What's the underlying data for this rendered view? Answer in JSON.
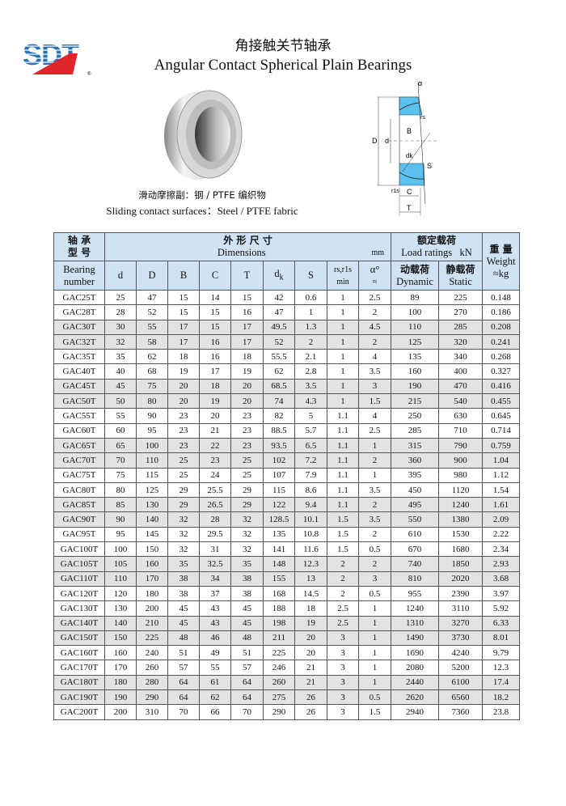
{
  "brand": {
    "logo_text": "SDT",
    "registered": "®",
    "colors": {
      "blue": "#2a72b8",
      "red": "#e0262b"
    }
  },
  "title": {
    "cn": "角接触关节轴承",
    "en": "Angular Contact Spherical Plain Bearings"
  },
  "caption": {
    "cn": "滑动摩擦副：钢 / PTFE 编织物",
    "en": "Sliding contact surfaces：Steel / PTFE fabric"
  },
  "diagram": {
    "labels": {
      "alpha": "α",
      "rs": "rs",
      "r1s": "r1s",
      "B": "B",
      "D": "D",
      "d": "d",
      "dk": "dk",
      "S": "S",
      "C": "C",
      "T": "T"
    },
    "fill_color": "#5bc2ef"
  },
  "table": {
    "header": {
      "bearing_cn1": "轴 承",
      "bearing_cn2": "型 号",
      "bearing_en1": "Bearing",
      "bearing_en2": "number",
      "dims_cn": "外 形 尺 寸",
      "dims_en": "Dimensions",
      "dims_unit": "mm",
      "load_cn": "额定载荷",
      "load_en": "Load ratings",
      "load_unit": "kN",
      "weight_cn": "重 量",
      "weight_en": "Weight",
      "weight_unit": "≈kg",
      "cols": {
        "d": "d",
        "D": "D",
        "B": "B",
        "C": "C",
        "T": "T",
        "dk": "d",
        "dk_sub": "k",
        "S": "S",
        "r": "rs,r1s",
        "r_min": "min",
        "alpha": "α°",
        "alpha_approx": "≈",
        "dyn_cn": "动载荷",
        "dyn_en": "Dynamic",
        "stat_cn": "静载荷",
        "stat_en": "Static"
      }
    },
    "header_color": "#cfe3f4",
    "rows": [
      [
        "GAC25T",
        "25",
        "47",
        "15",
        "14",
        "15",
        "42",
        "0.6",
        "1",
        "2.5",
        "89",
        "225",
        "0.148"
      ],
      [
        "GAC28T",
        "28",
        "52",
        "15",
        "15",
        "16",
        "47",
        "1",
        "1",
        "2",
        "100",
        "270",
        "0.186"
      ],
      [
        "GAC30T",
        "30",
        "55",
        "17",
        "15",
        "17",
        "49.5",
        "1.3",
        "1",
        "4.5",
        "110",
        "285",
        "0.208"
      ],
      [
        "GAC32T",
        "32",
        "58",
        "17",
        "16",
        "17",
        "52",
        "2",
        "1",
        "2",
        "125",
        "320",
        "0.241"
      ],
      [
        "GAC35T",
        "35",
        "62",
        "18",
        "16",
        "18",
        "55.5",
        "2.1",
        "1",
        "4",
        "135",
        "340",
        "0.268"
      ],
      [
        "GAC40T",
        "40",
        "68",
        "19",
        "17",
        "19",
        "62",
        "2.8",
        "1",
        "3.5",
        "160",
        "400",
        "0.327"
      ],
      [
        "GAC45T",
        "45",
        "75",
        "20",
        "18",
        "20",
        "68.5",
        "3.5",
        "1",
        "3",
        "190",
        "470",
        "0.416"
      ],
      [
        "GAC50T",
        "50",
        "80",
        "20",
        "19",
        "20",
        "74",
        "4.3",
        "1",
        "1.5",
        "215",
        "540",
        "0.455"
      ],
      [
        "GAC55T",
        "55",
        "90",
        "23",
        "20",
        "23",
        "82",
        "5",
        "1.1",
        "4",
        "250",
        "630",
        "0.645"
      ],
      [
        "GAC60T",
        "60",
        "95",
        "23",
        "21",
        "23",
        "88.5",
        "5.7",
        "1.1",
        "2.5",
        "285",
        "710",
        "0.714"
      ],
      [
        "GAC65T",
        "65",
        "100",
        "23",
        "22",
        "23",
        "93.5",
        "6.5",
        "1.1",
        "1",
        "315",
        "790",
        "0.759"
      ],
      [
        "GAC70T",
        "70",
        "110",
        "25",
        "23",
        "25",
        "102",
        "7.2",
        "1.1",
        "2",
        "360",
        "900",
        "1.04"
      ],
      [
        "GAC75T",
        "75",
        "115",
        "25",
        "24",
        "25",
        "107",
        "7.9",
        "1.1",
        "1",
        "395",
        "980",
        "1.12"
      ],
      [
        "GAC80T",
        "80",
        "125",
        "29",
        "25.5",
        "29",
        "115",
        "8.6",
        "1.1",
        "3.5",
        "450",
        "1120",
        "1.54"
      ],
      [
        "GAC85T",
        "85",
        "130",
        "29",
        "26.5",
        "29",
        "122",
        "9.4",
        "1.1",
        "2",
        "495",
        "1240",
        "1.61"
      ],
      [
        "GAC90T",
        "90",
        "140",
        "32",
        "28",
        "32",
        "128.5",
        "10.1",
        "1.5",
        "3.5",
        "550",
        "1380",
        "2.09"
      ],
      [
        "GAC95T",
        "95",
        "145",
        "32",
        "29.5",
        "32",
        "135",
        "10.8",
        "1.5",
        "2",
        "610",
        "1530",
        "2.22"
      ],
      [
        "GAC100T",
        "100",
        "150",
        "32",
        "31",
        "32",
        "141",
        "11.6",
        "1.5",
        "0.5",
        "670",
        "1680",
        "2.34"
      ],
      [
        "GAC105T",
        "105",
        "160",
        "35",
        "32.5",
        "35",
        "148",
        "12.3",
        "2",
        "2",
        "740",
        "1850",
        "2.93"
      ],
      [
        "GAC110T",
        "110",
        "170",
        "38",
        "34",
        "38",
        "155",
        "13",
        "2",
        "3",
        "810",
        "2020",
        "3.68"
      ],
      [
        "GAC120T",
        "120",
        "180",
        "38",
        "37",
        "38",
        "168",
        "14.5",
        "2",
        "0.5",
        "955",
        "2390",
        "3.97"
      ],
      [
        "GAC130T",
        "130",
        "200",
        "45",
        "43",
        "45",
        "188",
        "18",
        "2.5",
        "1",
        "1240",
        "3110",
        "5.92"
      ],
      [
        "GAC140T",
        "140",
        "210",
        "45",
        "43",
        "45",
        "198",
        "19",
        "2.5",
        "1",
        "1310",
        "3270",
        "6.33"
      ],
      [
        "GAC150T",
        "150",
        "225",
        "48",
        "46",
        "48",
        "211",
        "20",
        "3",
        "1",
        "1490",
        "3730",
        "8.01"
      ],
      [
        "GAC160T",
        "160",
        "240",
        "51",
        "49",
        "51",
        "225",
        "20",
        "3",
        "1",
        "1690",
        "4240",
        "9.79"
      ],
      [
        "GAC170T",
        "170",
        "260",
        "57",
        "55",
        "57",
        "246",
        "21",
        "3",
        "1",
        "2080",
        "5200",
        "12.3"
      ],
      [
        "GAC180T",
        "180",
        "280",
        "64",
        "61",
        "64",
        "260",
        "21",
        "3",
        "1",
        "2440",
        "6100",
        "17.4"
      ],
      [
        "GAC190T",
        "190",
        "290",
        "64",
        "62",
        "64",
        "275",
        "26",
        "3",
        "0.5",
        "2620",
        "6560",
        "18.2"
      ],
      [
        "GAC200T",
        "200",
        "310",
        "70",
        "66",
        "70",
        "290",
        "26",
        "3",
        "1.5",
        "2940",
        "7360",
        "23.8"
      ]
    ]
  }
}
